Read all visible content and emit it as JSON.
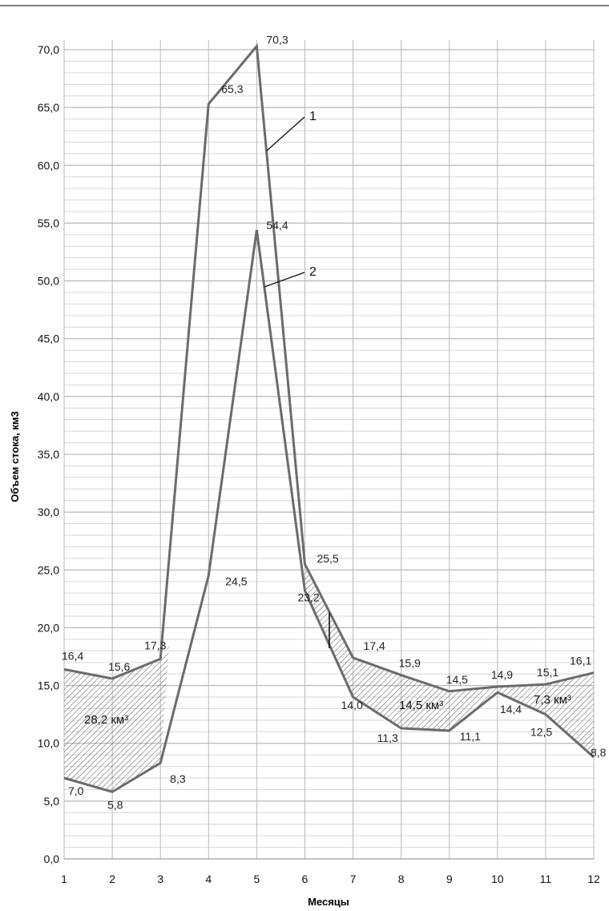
{
  "chart_data": {
    "type": "line",
    "categories": [
      "1",
      "2",
      "3",
      "4",
      "5",
      "6",
      "7",
      "8",
      "9",
      "10",
      "11",
      "12"
    ],
    "x": [
      1,
      2,
      3,
      4,
      5,
      6,
      7,
      8,
      9,
      10,
      11,
      12
    ],
    "series": [
      {
        "name": "1",
        "values": [
          16.4,
          15.6,
          17.3,
          65.3,
          70.3,
          25.5,
          17.4,
          15.9,
          14.5,
          14.9,
          15.1,
          16.1
        ],
        "color": "#6b6b6b"
      },
      {
        "name": "2",
        "values": [
          7.0,
          5.8,
          8.3,
          24.5,
          54.4,
          23.2,
          14.0,
          11.3,
          11.1,
          14.4,
          12.5,
          8.8
        ],
        "color": "#6b6b6b"
      }
    ],
    "data_labels": {
      "series1": [
        "16,4",
        "15,6",
        "17,3",
        "65,3",
        "70,3",
        "25,5",
        "17,4",
        "15,9",
        "14,5",
        "14,9",
        "15,1",
        "16,1"
      ],
      "series2": [
        "7,0",
        "5,8",
        "8,3",
        "24,5",
        "54,4",
        "23,2",
        "14,0",
        "11,3",
        "11,1",
        "14,4",
        "12,5",
        "8,8"
      ]
    },
    "ylim": [
      0,
      70
    ],
    "yticks": [
      "0,0",
      "5,0",
      "10,0",
      "15,0",
      "20,0",
      "25,0",
      "30,0",
      "35,0",
      "40,0",
      "45,0",
      "50,0",
      "55,0",
      "60,0",
      "65,0",
      "70,0"
    ],
    "xlabel": "Месяцы",
    "ylabel": "Объем стока, км3",
    "annotations": [
      {
        "text": "28,2 км³"
      },
      {
        "text": "14,5 км³"
      },
      {
        "text": "7,3 км³"
      }
    ],
    "grid": true,
    "legend": "none"
  }
}
